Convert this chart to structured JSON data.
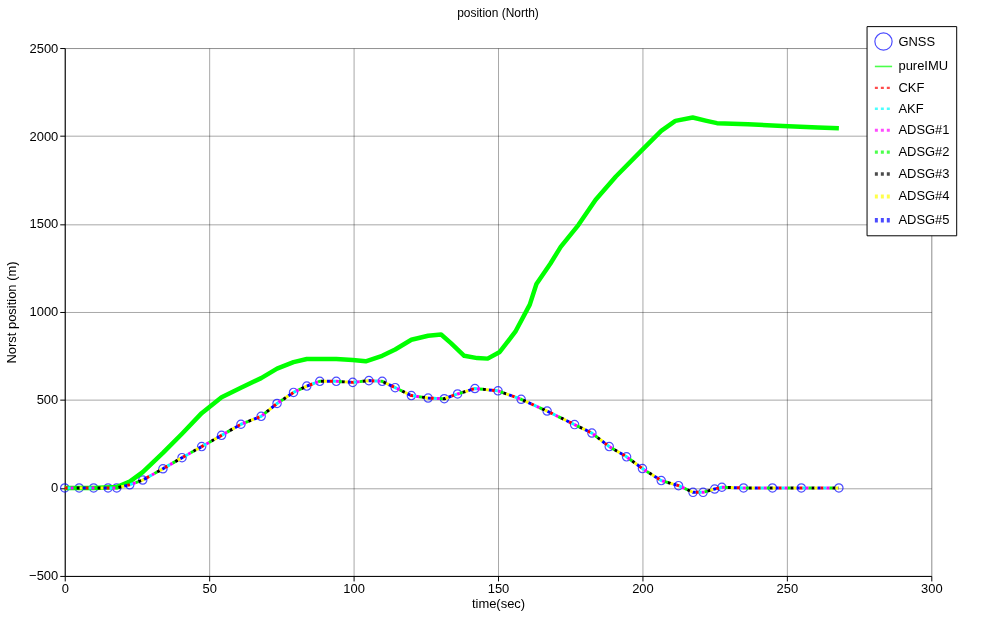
{
  "chart_data": {
    "type": "line",
    "title": "position (North)",
    "xlabel": "time(sec)",
    "ylabel": "Norst position (m)",
    "xlim": [
      0,
      300
    ],
    "xticks": [
      0,
      50,
      100,
      150,
      200,
      250,
      300
    ],
    "ylim": [
      -500,
      2500
    ],
    "yticks": [
      -500,
      0,
      500,
      1000,
      1500,
      2000,
      2500
    ],
    "grid": true,
    "legend": "top right",
    "series": [
      {
        "name": "GNSS",
        "type": "scatter",
        "marker": "circle",
        "color": "#0000ff",
        "x": [
          0,
          5,
          10,
          15,
          18,
          22.5,
          27,
          34,
          40.6,
          47.4,
          54.3,
          61,
          68,
          73.5,
          79.2,
          83.8,
          88.3,
          94,
          99.7,
          105.3,
          109.9,
          114.4,
          120,
          125.8,
          131.4,
          136,
          142,
          150,
          158,
          167,
          176.5,
          182.5,
          188.5,
          194.5,
          200,
          206.5,
          212.5,
          217.5,
          221,
          225,
          227.5,
          235,
          245,
          255,
          268
        ],
        "values": [
          0,
          0,
          0,
          0,
          0,
          18,
          45,
          109,
          172,
          235,
          299,
          362,
          407,
          480,
          543,
          579,
          606,
          606,
          600,
          610,
          606,
          570,
          525,
          511,
          507,
          534,
          565,
          552,
          504,
          437,
          360,
          312,
          235,
          177,
          110,
          42,
          13,
          -25,
          -25,
          -6,
          4,
          0,
          0,
          0,
          0
        ]
      },
      {
        "name": "pureIMU",
        "line_style": "solid",
        "color": "#00ff00",
        "x": [
          0,
          10,
          18,
          22.5,
          27,
          34,
          40.6,
          47.4,
          54.3,
          61,
          68,
          73.5,
          79.2,
          83.8,
          88.3,
          94,
          99.7,
          104.2,
          109.9,
          114.4,
          120,
          125.8,
          130.3,
          133.7,
          138.3,
          142.8,
          146.4,
          150.6,
          156,
          161,
          163.3,
          168.1,
          171.7,
          177.8,
          183.8,
          190.8,
          200,
          206.5,
          211.4,
          217.4,
          222.2,
          225.8,
          236.5,
          248.6,
          260.7,
          268
        ],
        "values": [
          0,
          0,
          5,
          36,
          90,
          199,
          308,
          425,
          516,
          570,
          624,
          678,
          715,
          733,
          733,
          733,
          727,
          720,
          751,
          787,
          842,
          865,
          872,
          823,
          751,
          738,
          735,
          773,
          888,
          1042,
          1159,
          1274,
          1370,
          1494,
          1638,
          1770,
          1923,
          2029,
          2086,
          2105,
          2086,
          2073,
          2067,
          2057,
          2049,
          2044
        ]
      },
      {
        "name": "CKF",
        "line_style": "dotted",
        "color": "#ff0000",
        "x": [
          0,
          5,
          10,
          15,
          18,
          22.5,
          27,
          34,
          40.6,
          47.4,
          54.3,
          61,
          68,
          73.5,
          79.2,
          83.8,
          88.3,
          94,
          99.7,
          105.3,
          109.9,
          114.4,
          120,
          125.8,
          131.4,
          136,
          142,
          150,
          158,
          167,
          176.5,
          182.5,
          188.5,
          194.5,
          200,
          206.5,
          212.5,
          217.5,
          221,
          225,
          227.5,
          235,
          245,
          255,
          268
        ],
        "values": [
          0,
          0,
          0,
          0,
          0,
          18,
          45,
          109,
          172,
          235,
          299,
          362,
          407,
          480,
          543,
          579,
          606,
          606,
          600,
          610,
          606,
          570,
          525,
          511,
          507,
          534,
          565,
          552,
          504,
          437,
          360,
          312,
          235,
          177,
          110,
          42,
          13,
          -25,
          -25,
          -6,
          4,
          0,
          0,
          0,
          0
        ]
      },
      {
        "name": "AKF",
        "line_style": "dotted",
        "color": "#00ffff",
        "x": [
          0,
          5,
          10,
          15,
          18,
          22.5,
          27,
          34,
          40.6,
          47.4,
          54.3,
          61,
          68,
          73.5,
          79.2,
          83.8,
          88.3,
          94,
          99.7,
          105.3,
          109.9,
          114.4,
          120,
          125.8,
          131.4,
          136,
          142,
          150,
          158,
          167,
          176.5,
          182.5,
          188.5,
          194.5,
          200,
          206.5,
          212.5,
          217.5,
          221,
          225,
          227.5,
          235,
          245,
          255,
          268
        ],
        "values": [
          0,
          0,
          0,
          0,
          0,
          18,
          45,
          109,
          172,
          235,
          299,
          362,
          407,
          480,
          543,
          579,
          606,
          606,
          600,
          610,
          606,
          570,
          525,
          511,
          507,
          534,
          565,
          552,
          504,
          437,
          360,
          312,
          235,
          177,
          110,
          42,
          13,
          -25,
          -25,
          -6,
          4,
          0,
          0,
          0,
          0
        ]
      },
      {
        "name": "ADSG#1",
        "line_style": "dotted",
        "color": "#ff00ff",
        "x": [
          0,
          5,
          10,
          15,
          18,
          22.5,
          27,
          34,
          40.6,
          47.4,
          54.3,
          61,
          68,
          73.5,
          79.2,
          83.8,
          88.3,
          94,
          99.7,
          105.3,
          109.9,
          114.4,
          120,
          125.8,
          131.4,
          136,
          142,
          150,
          158,
          167,
          176.5,
          182.5,
          188.5,
          194.5,
          200,
          206.5,
          212.5,
          217.5,
          221,
          225,
          227.5,
          235,
          245,
          255,
          268
        ],
        "values": [
          0,
          0,
          0,
          0,
          0,
          18,
          45,
          109,
          172,
          235,
          299,
          362,
          407,
          480,
          543,
          579,
          606,
          606,
          600,
          610,
          606,
          570,
          525,
          511,
          507,
          534,
          565,
          552,
          504,
          437,
          360,
          312,
          235,
          177,
          110,
          42,
          13,
          -25,
          -25,
          -6,
          4,
          0,
          0,
          0,
          0
        ]
      },
      {
        "name": "ADSG#2",
        "line_style": "dotted",
        "color": "#00ff00",
        "x": [
          0,
          5,
          10,
          15,
          18,
          22.5,
          27,
          34,
          40.6,
          47.4,
          54.3,
          61,
          68,
          73.5,
          79.2,
          83.8,
          88.3,
          94,
          99.7,
          105.3,
          109.9,
          114.4,
          120,
          125.8,
          131.4,
          136,
          142,
          150,
          158,
          167,
          176.5,
          182.5,
          188.5,
          194.5,
          200,
          206.5,
          212.5,
          217.5,
          221,
          225,
          227.5,
          235,
          245,
          255,
          268
        ],
        "values": [
          0,
          0,
          0,
          0,
          0,
          18,
          45,
          109,
          172,
          235,
          299,
          362,
          407,
          480,
          543,
          579,
          606,
          606,
          600,
          610,
          606,
          570,
          525,
          511,
          507,
          534,
          565,
          552,
          504,
          437,
          360,
          312,
          235,
          177,
          110,
          42,
          13,
          -25,
          -25,
          -6,
          4,
          0,
          0,
          0,
          0
        ]
      },
      {
        "name": "ADSG#3",
        "line_style": "dotted",
        "color": "#000000",
        "x": [
          0,
          5,
          10,
          15,
          18,
          22.5,
          27,
          34,
          40.6,
          47.4,
          54.3,
          61,
          68,
          73.5,
          79.2,
          83.8,
          88.3,
          94,
          99.7,
          105.3,
          109.9,
          114.4,
          120,
          125.8,
          131.4,
          136,
          142,
          150,
          158,
          167,
          176.5,
          182.5,
          188.5,
          194.5,
          200,
          206.5,
          212.5,
          217.5,
          221,
          225,
          227.5,
          235,
          245,
          255,
          268
        ],
        "values": [
          0,
          0,
          0,
          0,
          0,
          18,
          45,
          109,
          172,
          235,
          299,
          362,
          407,
          480,
          543,
          579,
          606,
          606,
          600,
          610,
          606,
          570,
          525,
          511,
          507,
          534,
          565,
          552,
          504,
          437,
          360,
          312,
          235,
          177,
          110,
          42,
          13,
          -25,
          -25,
          -6,
          4,
          0,
          0,
          0,
          0
        ]
      },
      {
        "name": "ADSG#4",
        "line_style": "dotted",
        "color": "#ffff00",
        "x": [
          0,
          5,
          10,
          15,
          18,
          22.5,
          27,
          34,
          40.6,
          47.4,
          54.3,
          61,
          68,
          73.5,
          79.2,
          83.8,
          88.3,
          94,
          99.7,
          105.3,
          109.9,
          114.4,
          120,
          125.8,
          131.4,
          136,
          142,
          150,
          158,
          167,
          176.5,
          182.5,
          188.5,
          194.5,
          200,
          206.5,
          212.5,
          217.5,
          221,
          225,
          227.5,
          235,
          245,
          255,
          268
        ],
        "values": [
          0,
          0,
          0,
          0,
          0,
          18,
          45,
          109,
          172,
          235,
          299,
          362,
          407,
          480,
          543,
          579,
          606,
          606,
          600,
          610,
          606,
          570,
          525,
          511,
          507,
          534,
          565,
          552,
          504,
          437,
          360,
          312,
          235,
          177,
          110,
          42,
          13,
          -25,
          -25,
          -6,
          4,
          0,
          0,
          0,
          0
        ]
      },
      {
        "name": "ADSG#5",
        "line_style": "dotted",
        "color": "#0000ff",
        "x": [
          0,
          5,
          10,
          15,
          18,
          22.5,
          27,
          34,
          40.6,
          47.4,
          54.3,
          61,
          68,
          73.5,
          79.2,
          83.8,
          88.3,
          94,
          99.7,
          105.3,
          109.9,
          114.4,
          120,
          125.8,
          131.4,
          136,
          142,
          150,
          158,
          167,
          176.5,
          182.5,
          188.5,
          194.5,
          200,
          206.5,
          212.5,
          217.5,
          221,
          225,
          227.5,
          235,
          245,
          255,
          268
        ],
        "values": [
          0,
          0,
          0,
          0,
          0,
          18,
          45,
          109,
          172,
          235,
          299,
          362,
          407,
          480,
          543,
          579,
          606,
          606,
          600,
          610,
          606,
          570,
          525,
          511,
          507,
          534,
          565,
          552,
          504,
          437,
          360,
          312,
          235,
          177,
          110,
          42,
          13,
          -25,
          -25,
          -6,
          4,
          0,
          0,
          0,
          0
        ]
      }
    ]
  }
}
